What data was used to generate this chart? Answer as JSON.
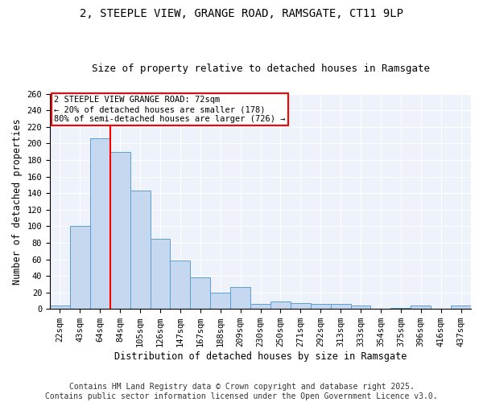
{
  "title1": "2, STEEPLE VIEW, GRANGE ROAD, RAMSGATE, CT11 9LP",
  "title2": "Size of property relative to detached houses in Ramsgate",
  "xlabel": "Distribution of detached houses by size in Ramsgate",
  "ylabel": "Number of detached properties",
  "categories": [
    "22sqm",
    "43sqm",
    "64sqm",
    "84sqm",
    "105sqm",
    "126sqm",
    "147sqm",
    "167sqm",
    "188sqm",
    "209sqm",
    "230sqm",
    "250sqm",
    "271sqm",
    "292sqm",
    "313sqm",
    "333sqm",
    "354sqm",
    "375sqm",
    "396sqm",
    "416sqm",
    "437sqm"
  ],
  "values": [
    4,
    100,
    206,
    190,
    143,
    85,
    59,
    38,
    20,
    26,
    6,
    9,
    7,
    6,
    6,
    4,
    0,
    1,
    4,
    0,
    4
  ],
  "bar_color": "#c5d8f0",
  "bar_edge_color": "#5a9fd4",
  "vline_color": "red",
  "vline_x_index": 2,
  "annotation_text": "2 STEEPLE VIEW GRANGE ROAD: 72sqm\n← 20% of detached houses are smaller (178)\n80% of semi-detached houses are larger (726) →",
  "box_color": "white",
  "box_edge_color": "red",
  "ylim": [
    0,
    260
  ],
  "yticks": [
    0,
    20,
    40,
    60,
    80,
    100,
    120,
    140,
    160,
    180,
    200,
    220,
    240,
    260
  ],
  "bg_color": "#eef2fa",
  "grid_color": "white",
  "footer_text": "Contains HM Land Registry data © Crown copyright and database right 2025.\nContains public sector information licensed under the Open Government Licence v3.0.",
  "title1_fontsize": 10,
  "title2_fontsize": 9,
  "label_fontsize": 8.5,
  "tick_fontsize": 7.5,
  "footer_fontsize": 7,
  "annot_fontsize": 7.5
}
